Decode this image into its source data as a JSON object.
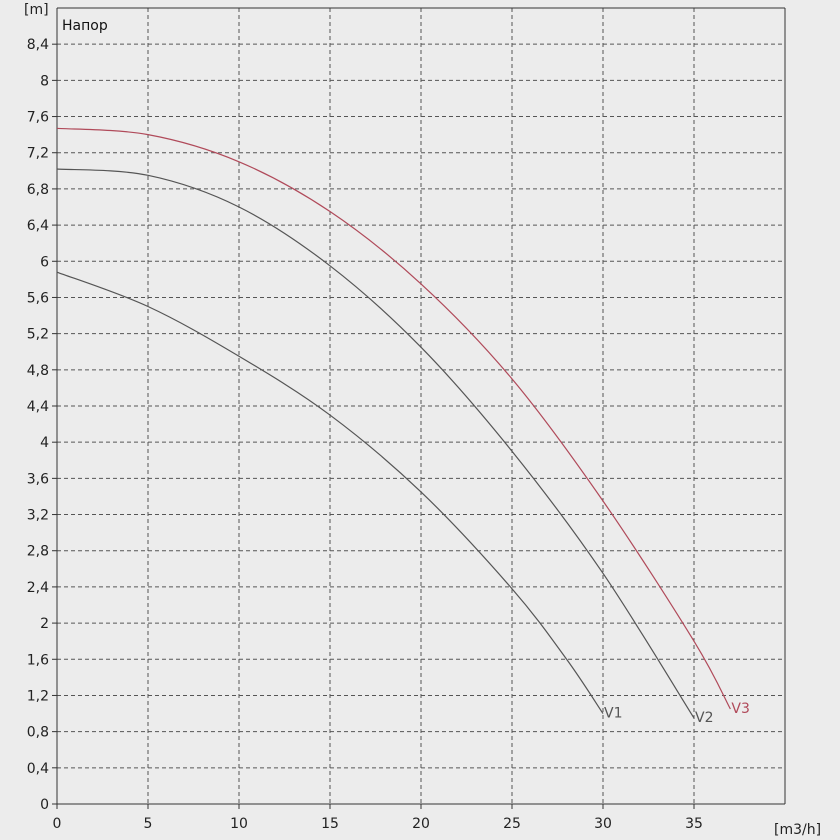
{
  "chart_data": {
    "type": "line",
    "title": "Напор",
    "xlabel": "[m3/h]",
    "ylabel": "[m]",
    "xlim": [
      0,
      40
    ],
    "ylim": [
      0,
      8.8
    ],
    "x_ticks": [
      0,
      5,
      10,
      15,
      20,
      25,
      30,
      35
    ],
    "y_ticks": [
      0,
      0.4,
      0.8,
      1.2,
      1.6,
      2,
      2.4,
      2.8,
      3.2,
      3.6,
      4,
      4.4,
      4.8,
      5.2,
      5.6,
      6,
      6.4,
      6.8,
      7.2,
      7.6,
      8,
      8.4
    ],
    "grid": true,
    "series": [
      {
        "name": "V1",
        "color": "#555555",
        "x": [
          0,
          5,
          10,
          15,
          20,
          25,
          28,
          30
        ],
        "y": [
          5.88,
          5.5,
          4.95,
          4.3,
          3.45,
          2.38,
          1.6,
          1.0
        ]
      },
      {
        "name": "V2",
        "color": "#555555",
        "x": [
          0,
          5,
          10,
          15,
          20,
          25,
          30,
          35
        ],
        "y": [
          7.02,
          6.95,
          6.6,
          5.95,
          5.05,
          3.9,
          2.55,
          0.95
        ]
      },
      {
        "name": "V3",
        "color": "#b04a5a",
        "x": [
          0,
          5,
          10,
          15,
          20,
          25,
          30,
          35,
          37
        ],
        "y": [
          7.47,
          7.4,
          7.1,
          6.55,
          5.75,
          4.7,
          3.35,
          1.8,
          1.05
        ]
      }
    ]
  }
}
